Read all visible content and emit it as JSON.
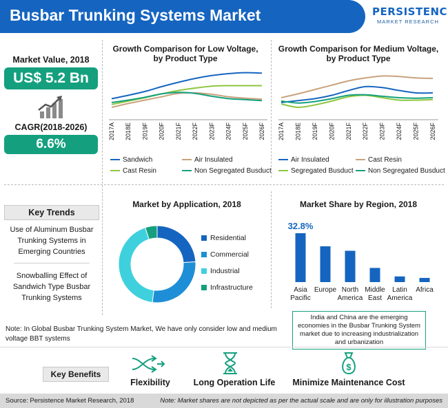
{
  "header": {
    "title": "Busbar Trunking Systems Market"
  },
  "logo": {
    "name": "PERSISTENCE",
    "tagline": "MARKET RESEARCH"
  },
  "market": {
    "value_label": "Market Value, 2018",
    "value": "US$ 5.2 Bn",
    "cagr_label": "CAGR(2018-2026)",
    "cagr": "6.6%"
  },
  "key_trends": {
    "title": "Key Trends",
    "items": [
      "Use of Aluminum Busbar Trunking Systems in Emerging Countries",
      "Snowballing Effect of Sandwich Type Busbar Trunking Systems"
    ]
  },
  "note": "Note: In Global Busbar Trunking System Market, We have only consider low and medium voltage BBT systems",
  "info_box": "India and China are the emerging economies in the Busbar Trunking System market due to increasing industrialization and urbanization",
  "key_benefits": {
    "title": "Key Benefits",
    "items": [
      {
        "label": "Flexibility",
        "icon": "flexibility-arrows-icon"
      },
      {
        "label": "Long Operation Life",
        "icon": "hourglass-icon"
      },
      {
        "label": "Minimize Maintenance Cost",
        "icon": "money-bag-icon"
      }
    ]
  },
  "footer": {
    "source": "Source: Persistence Market Research, 2018",
    "disclaimer": "Note: Market shares are not depicted as per the actual scale and are only for illustration purposes"
  },
  "chart_data": [
    {
      "id": "low_voltage",
      "type": "line",
      "title": "Growth Comparison for Low Voltage, by Product Type",
      "x": [
        "2017A",
        "2018E",
        "2019F",
        "2020F",
        "2021F",
        "2022F",
        "2023F",
        "2024F",
        "2025F",
        "2026F"
      ],
      "ylim": [
        0,
        10
      ],
      "series": [
        {
          "name": "Sandwich",
          "color": "#1565c0",
          "values": [
            3.8,
            4.5,
            5.3,
            6.3,
            7.2,
            8.0,
            8.6,
            9.0,
            9.2,
            9.1
          ]
        },
        {
          "name": "Air Insulated",
          "color": "#c9a27c",
          "values": [
            2.0,
            2.8,
            3.5,
            4.2,
            4.9,
            5.0,
            4.7,
            4.2,
            3.9,
            3.7
          ]
        },
        {
          "name": "Cast Resin",
          "color": "#8cc63f",
          "values": [
            2.6,
            3.3,
            4.0,
            4.8,
            5.5,
            6.0,
            6.4,
            6.5,
            6.5,
            6.5
          ]
        },
        {
          "name": "Non Segregated Busduct",
          "color": "#14a07e",
          "values": [
            3.0,
            3.5,
            4.1,
            4.8,
            5.1,
            4.9,
            4.3,
            3.8,
            3.6,
            3.4
          ]
        }
      ]
    },
    {
      "id": "medium_voltage",
      "type": "line",
      "title": "Growth Comparison for Medium Voltage, by Product Type",
      "x": [
        "2017A",
        "2018E",
        "2019F",
        "2020F",
        "2021F",
        "2022F",
        "2023F",
        "2024F",
        "2025F",
        "2026F"
      ],
      "ylim": [
        0,
        10
      ],
      "series": [
        {
          "name": "Air Insulated",
          "color": "#1565c0",
          "values": [
            3.0,
            3.4,
            3.8,
            4.5,
            5.5,
            6.3,
            6.1,
            5.5,
            5.0,
            5.0
          ]
        },
        {
          "name": "Cast Resin",
          "color": "#c9a27c",
          "values": [
            4.0,
            4.8,
            5.7,
            6.6,
            7.5,
            8.1,
            8.5,
            8.4,
            8.1,
            8.0
          ]
        },
        {
          "name": "Segregated Busduct",
          "color": "#8cc63f",
          "values": [
            2.7,
            2.0,
            2.5,
            3.3,
            4.2,
            4.5,
            4.0,
            3.5,
            3.5,
            3.6
          ]
        },
        {
          "name": "Non Segregated Busduct",
          "color": "#14a07e",
          "values": [
            3.3,
            2.9,
            3.2,
            3.8,
            4.5,
            4.6,
            4.3,
            4.0,
            3.9,
            4.0
          ]
        }
      ]
    },
    {
      "id": "application",
      "type": "pie",
      "title": "Market by Application, 2018",
      "categories": [
        "Residential",
        "Commercial",
        "Industrial",
        "Infrastructure"
      ],
      "values": [
        24,
        28,
        43,
        5
      ],
      "colors": [
        "#1565c0",
        "#1e8fd6",
        "#3fd0de",
        "#14a07e"
      ]
    },
    {
      "id": "region",
      "type": "bar",
      "title": "Market Share by Region, 2018",
      "categories": [
        "Asia Pacific",
        "Europe",
        "North America",
        "Middle East",
        "Latin America",
        "Africa"
      ],
      "values": [
        32.8,
        24,
        21,
        9.5,
        3.8,
        2.8
      ],
      "data_labels": [
        "32.8%",
        "",
        "",
        "",
        "",
        ""
      ],
      "ylim": [
        0,
        36
      ],
      "color": "#1565c0"
    }
  ]
}
